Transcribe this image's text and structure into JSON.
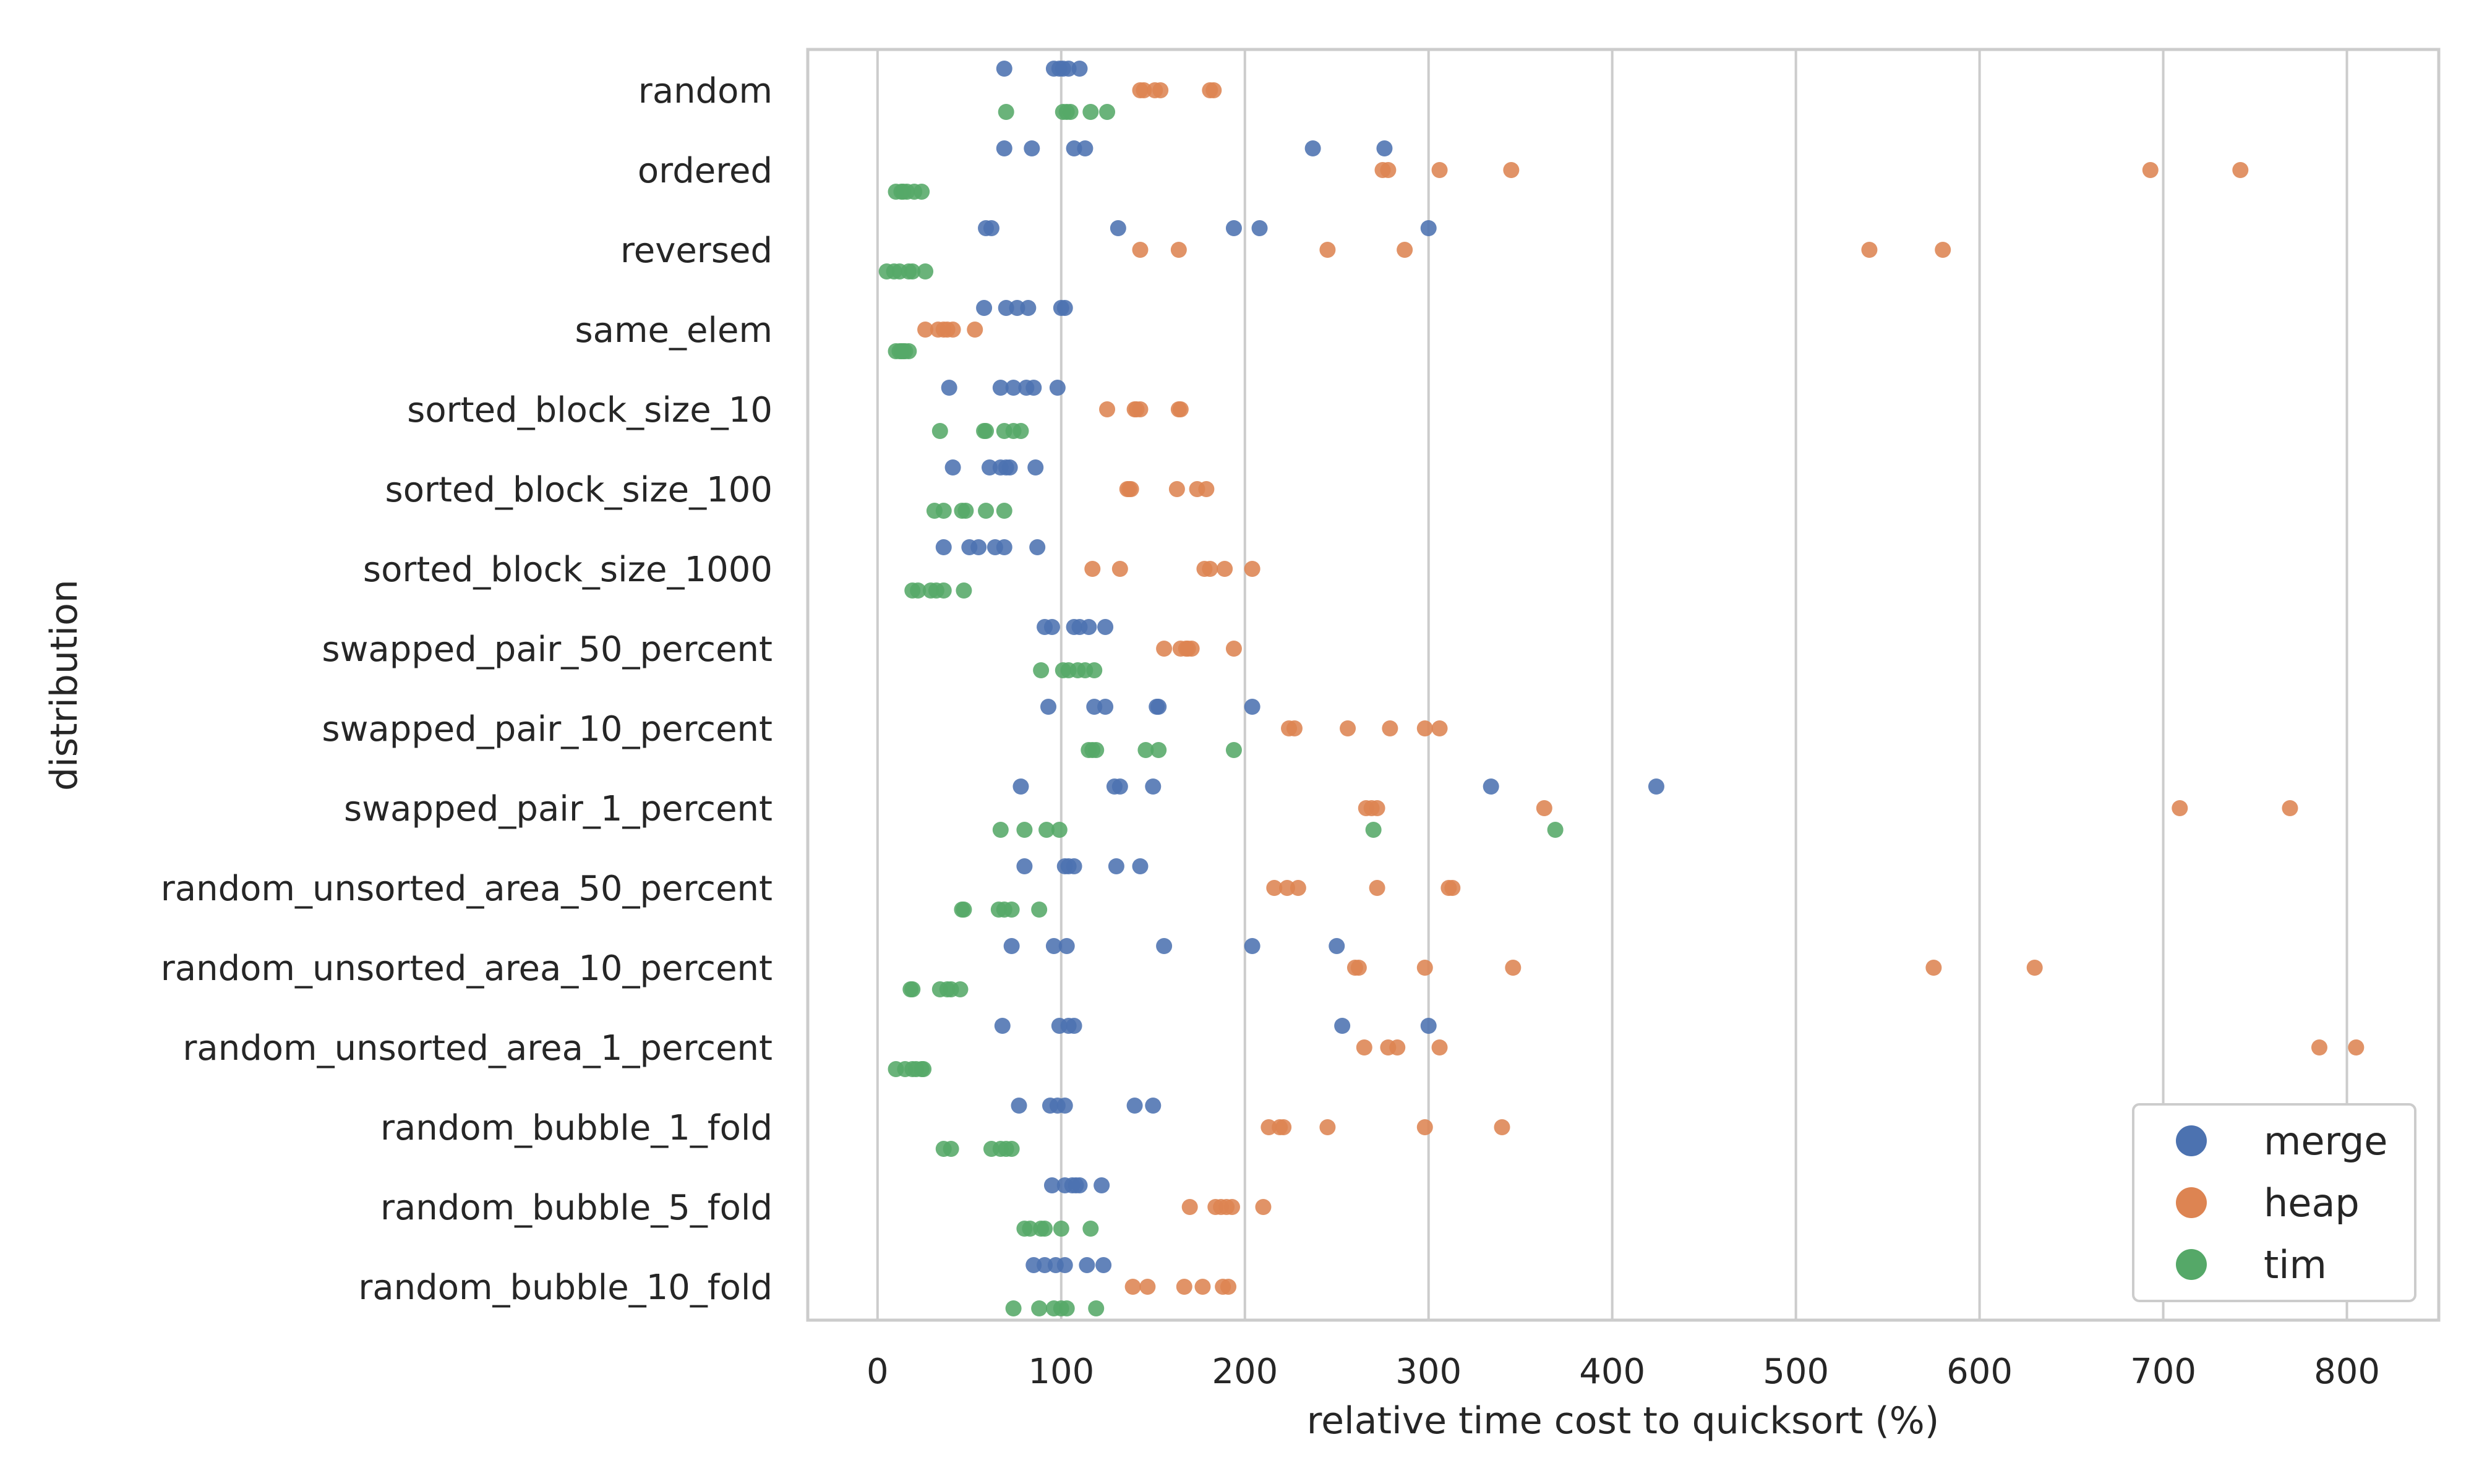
{
  "chart_data": {
    "type": "scatter",
    "xlabel": "relative time cost to quicksort (%)",
    "ylabel": "distribution",
    "xlim": [
      -38,
      850
    ],
    "xticks": [
      0,
      100,
      200,
      300,
      400,
      500,
      600,
      700,
      800
    ],
    "grid": "vertical",
    "legend_position": "bottom-right",
    "categories": [
      "random",
      "ordered",
      "reversed",
      "same_elem",
      "sorted_block_size_10",
      "sorted_block_size_100",
      "sorted_block_size_1000",
      "swapped_pair_50_percent",
      "swapped_pair_10_percent",
      "swapped_pair_1_percent",
      "random_unsorted_area_50_percent",
      "random_unsorted_area_10_percent",
      "random_unsorted_area_1_percent",
      "random_bubble_1_fold",
      "random_bubble_5_fold",
      "random_bubble_10_fold"
    ],
    "series": [
      {
        "name": "merge",
        "color": "#4c72b0",
        "values": [
          [
            69,
            96,
            99,
            101,
            104,
            110
          ],
          [
            69,
            84,
            107,
            113,
            237,
            276
          ],
          [
            59,
            62,
            131,
            194,
            208,
            300
          ],
          [
            58,
            70,
            76,
            82,
            100,
            102
          ],
          [
            39,
            67,
            74,
            81,
            85,
            98
          ],
          [
            41,
            61,
            67,
            70,
            72,
            86
          ],
          [
            36,
            50,
            55,
            64,
            69,
            87
          ],
          [
            91,
            95,
            107,
            110,
            115,
            124
          ],
          [
            93,
            118,
            124,
            152,
            153,
            204
          ],
          [
            78,
            129,
            132,
            150,
            334,
            424
          ],
          [
            80,
            102,
            104,
            107,
            130,
            143
          ],
          [
            73,
            96,
            103,
            156,
            204,
            250
          ],
          [
            68,
            99,
            104,
            107,
            253,
            300
          ],
          [
            77,
            94,
            98,
            102,
            140,
            150
          ],
          [
            95,
            102,
            106,
            110,
            122,
            108
          ],
          [
            85,
            91,
            97,
            102,
            114,
            123
          ]
        ]
      },
      {
        "name": "heap",
        "color": "#dd8452",
        "values": [
          [
            143,
            145,
            151,
            154,
            181,
            183
          ],
          [
            275,
            278,
            306,
            345,
            693,
            742
          ],
          [
            143,
            164,
            245,
            287,
            540,
            580
          ],
          [
            26,
            33,
            36,
            38,
            41,
            53
          ],
          [
            125,
            140,
            141,
            143,
            164,
            165
          ],
          [
            136,
            137,
            163,
            174,
            179,
            138
          ],
          [
            117,
            132,
            178,
            181,
            189,
            204
          ],
          [
            156,
            165,
            168,
            171,
            194,
            169
          ],
          [
            224,
            227,
            256,
            279,
            298,
            306
          ],
          [
            266,
            269,
            272,
            363,
            709,
            769
          ],
          [
            216,
            223,
            229,
            272,
            311,
            313
          ],
          [
            260,
            262,
            298,
            346,
            575,
            630
          ],
          [
            265,
            278,
            283,
            306,
            785,
            805
          ],
          [
            213,
            219,
            221,
            245,
            298,
            340
          ],
          [
            170,
            184,
            187,
            190,
            193,
            210
          ],
          [
            139,
            147,
            167,
            177,
            188,
            191
          ]
        ]
      },
      {
        "name": "tim",
        "color": "#55a868",
        "values": [
          [
            70,
            101,
            103,
            105,
            116,
            125
          ],
          [
            10,
            13,
            16,
            20,
            24,
            14
          ],
          [
            5,
            12,
            17,
            19,
            26,
            9
          ],
          [
            10,
            13,
            15,
            17,
            14,
            12
          ],
          [
            34,
            58,
            59,
            69,
            74,
            78
          ],
          [
            31,
            36,
            46,
            48,
            59,
            69
          ],
          [
            19,
            22,
            29,
            32,
            36,
            47
          ],
          [
            89,
            101,
            104,
            109,
            113,
            118
          ],
          [
            115,
            117,
            119,
            146,
            153,
            194
          ],
          [
            67,
            80,
            92,
            99,
            270,
            369
          ],
          [
            46,
            47,
            66,
            69,
            73,
            88
          ],
          [
            18,
            19,
            34,
            38,
            40,
            45
          ],
          [
            10,
            15,
            19,
            21,
            24,
            25
          ],
          [
            36,
            40,
            62,
            67,
            70,
            73
          ],
          [
            80,
            83,
            89,
            91,
            100,
            116
          ],
          [
            74,
            88,
            96,
            100,
            103,
            119
          ]
        ]
      }
    ]
  }
}
